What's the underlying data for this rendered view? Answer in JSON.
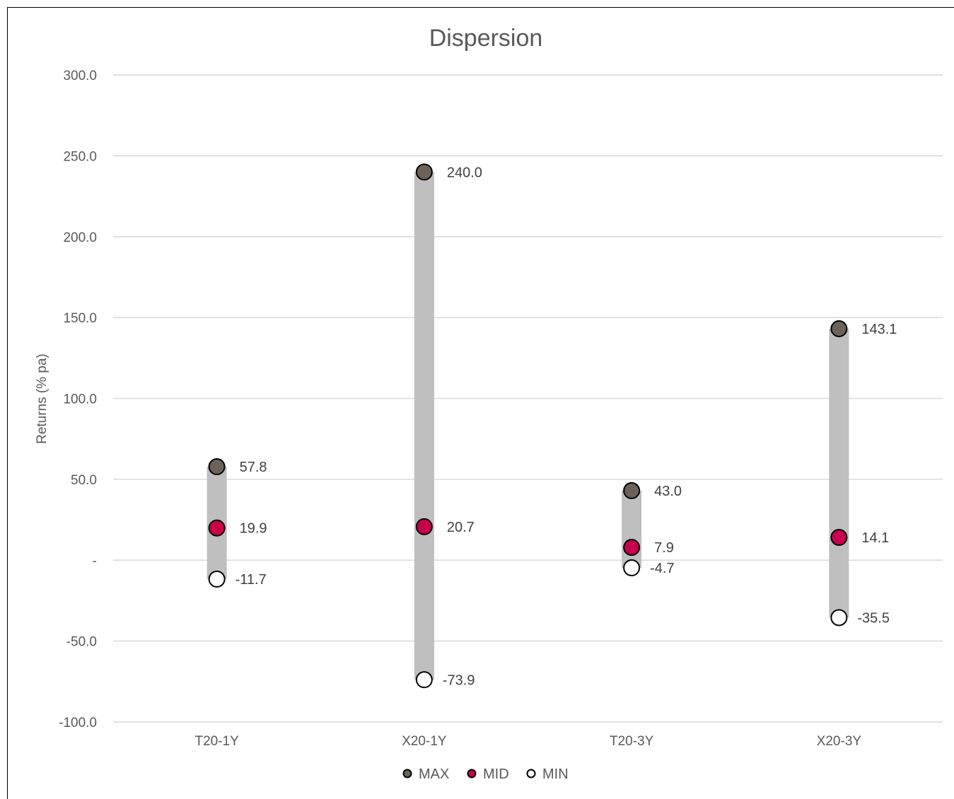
{
  "chart_data": {
    "type": "scatter",
    "title": "Dispersion",
    "xlabel": "",
    "ylabel": "Returns (% pa)",
    "categories": [
      "T20-1Y",
      "X20-1Y",
      "T20-3Y",
      "X20-3Y"
    ],
    "ylim": [
      -100,
      300
    ],
    "yticks": [
      300,
      250,
      200,
      150,
      100,
      50,
      0,
      -50,
      -100
    ],
    "ytick_labels": [
      "300.0",
      "250.0",
      "200.0",
      "150.0",
      "100.0",
      "50.0",
      "-",
      "-50.0",
      "-100.0"
    ],
    "grid": true,
    "legend_position": "bottom",
    "range_bar_color": "#BFBFBF",
    "series": [
      {
        "name": "MAX",
        "color": "#6B635A",
        "values": [
          57.8,
          240.0,
          43.0,
          143.1
        ],
        "labels": [
          "57.8",
          "240.0",
          "43.0",
          "143.1"
        ]
      },
      {
        "name": "MID",
        "color": "#C8004B",
        "values": [
          19.9,
          20.7,
          7.9,
          14.1
        ],
        "labels": [
          "19.9",
          "20.7",
          "7.9",
          "14.1"
        ]
      },
      {
        "name": "MIN",
        "color": "#FFFFFF",
        "values": [
          -11.7,
          -73.9,
          -4.7,
          -35.5
        ],
        "labels": [
          "-11.7",
          "-73.9",
          "-4.7",
          "-35.5"
        ]
      }
    ]
  }
}
